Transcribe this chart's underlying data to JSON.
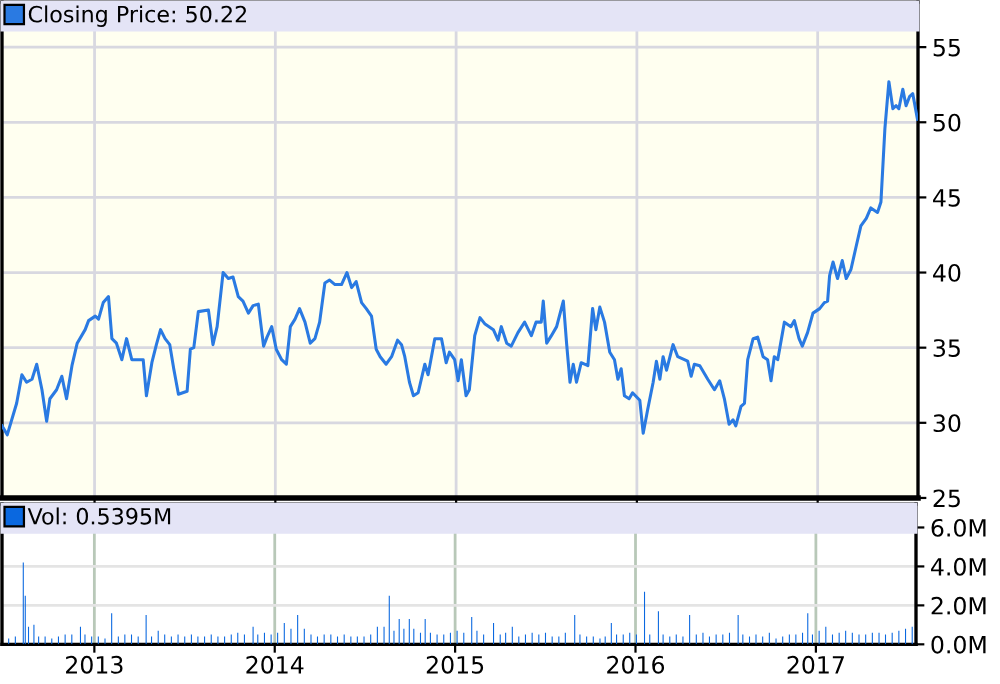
{
  "chart_data": [
    {
      "type": "line",
      "xlim": [
        2012.488,
        2017.555
      ],
      "ylim": [
        25,
        58
      ],
      "yticks": [
        25,
        30,
        35,
        40,
        45,
        50,
        55
      ],
      "xticks": [
        {
          "value": 2013,
          "label": null
        },
        {
          "value": 2014,
          "label": null
        },
        {
          "value": 2015,
          "label": null
        },
        {
          "value": 2016,
          "label": null
        },
        {
          "value": 2017,
          "label": null
        }
      ],
      "tick_labels": "y",
      "grid": true,
      "legend": "top left",
      "marker": "none",
      "line_style": "solid",
      "series": [
        {
          "name": "Closing Price: 50.22",
          "color": "#2a7ae2",
          "x": [
            2012.488,
            2012.517,
            2012.569,
            2012.598,
            2012.624,
            2012.654,
            2012.68,
            2012.709,
            2012.735,
            2012.753,
            2012.79,
            2012.819,
            2012.845,
            2012.875,
            2012.904,
            2012.948,
            2012.967,
            2013.004,
            2013.022,
            2013.048,
            2013.077,
            2013.096,
            2013.121,
            2013.151,
            2013.177,
            2013.206,
            2013.269,
            2013.287,
            2013.317,
            2013.342,
            2013.365,
            2013.39,
            2013.416,
            2013.438,
            2013.464,
            2013.512,
            2013.53,
            2013.549,
            2013.574,
            2013.63,
            2013.655,
            2013.678,
            2013.711,
            2013.74,
            2013.766,
            2013.795,
            2013.821,
            2013.851,
            2013.877,
            2013.906,
            2013.935,
            2013.954,
            2013.98,
            2014.005,
            2014.035,
            2014.061,
            2014.083,
            2014.109,
            2014.134,
            2014.164,
            2014.193,
            2014.219,
            2014.245,
            2014.274,
            2014.3,
            2014.33,
            2014.366,
            2014.396,
            2014.422,
            2014.447,
            2014.477,
            2014.503,
            2014.532,
            2014.558,
            2014.58,
            2014.613,
            2014.643,
            2014.676,
            2014.698,
            2014.716,
            2014.742,
            2014.764,
            2014.79,
            2014.827,
            2014.845,
            2014.882,
            2014.919,
            2014.945,
            2014.963,
            2014.992,
            2015.011,
            2015.029,
            2015.055,
            2015.073,
            2015.103,
            2015.132,
            2015.158,
            2015.206,
            2015.232,
            2015.25,
            2015.28,
            2015.305,
            2015.342,
            2015.379,
            2015.416,
            2015.442,
            2015.471,
            2015.482,
            2015.501,
            2015.527,
            2015.556,
            2015.593,
            2015.611,
            2015.63,
            2015.648,
            2015.666,
            2015.692,
            2015.729,
            2015.755,
            2015.773,
            2015.795,
            2015.821,
            2015.85,
            2015.876,
            2015.895,
            2015.913,
            2015.931,
            2015.957,
            2015.976,
            2016.016,
            2016.035,
            2016.06,
            2016.09,
            2016.108,
            2016.127,
            2016.145,
            2016.164,
            2016.2,
            2016.226,
            2016.281,
            2016.3,
            2016.318,
            2016.348,
            2016.392,
            2016.429,
            2016.458,
            2016.484,
            2016.51,
            2016.532,
            2016.547,
            2016.576,
            2016.595,
            2016.613,
            2016.643,
            2016.668,
            2016.698,
            2016.723,
            2016.742,
            2016.76,
            2016.779,
            2016.816,
            2016.852,
            2016.871,
            2016.897,
            2016.915,
            2016.944,
            2016.974,
            2017.011,
            2017.037,
            2017.055,
            2017.066,
            2017.085,
            2017.11,
            2017.136,
            2017.158,
            2017.184,
            2017.214,
            2017.239,
            2017.269,
            2017.294,
            2017.331,
            2017.35,
            2017.372,
            2017.394,
            2017.416,
            2017.434,
            2017.449,
            2017.471,
            2017.489,
            2017.508,
            2017.526,
            2017.552
          ],
          "values": [
            29.8,
            29.2,
            31.3,
            33.2,
            32.7,
            32.9,
            33.9,
            32.2,
            30.1,
            31.6,
            32.2,
            33.1,
            31.6,
            33.8,
            35.3,
            36.2,
            36.8,
            37.1,
            36.9,
            38.0,
            38.4,
            35.6,
            35.3,
            34.2,
            35.6,
            34.2,
            34.2,
            31.8,
            34.0,
            35.2,
            36.2,
            35.6,
            35.2,
            33.6,
            31.9,
            32.1,
            34.9,
            35.0,
            37.4,
            37.5,
            35.2,
            36.4,
            40.0,
            39.6,
            39.7,
            38.4,
            38.1,
            37.3,
            37.8,
            37.9,
            35.1,
            35.7,
            36.4,
            34.9,
            34.2,
            33.9,
            36.4,
            36.9,
            37.6,
            36.7,
            35.3,
            35.6,
            36.7,
            39.3,
            39.5,
            39.2,
            39.2,
            40.0,
            39.0,
            39.4,
            38.0,
            37.6,
            37.1,
            34.9,
            34.4,
            33.9,
            34.4,
            35.5,
            35.2,
            34.4,
            32.7,
            31.8,
            32.0,
            33.9,
            33.2,
            35.6,
            35.6,
            34.0,
            34.7,
            34.2,
            32.8,
            34.2,
            31.8,
            32.2,
            35.8,
            37.0,
            36.6,
            36.2,
            35.5,
            36.4,
            35.3,
            35.1,
            36.0,
            36.7,
            35.8,
            36.7,
            36.7,
            38.1,
            35.3,
            35.8,
            36.4,
            38.1,
            35.3,
            32.7,
            33.9,
            32.7,
            34.0,
            33.8,
            37.6,
            36.2,
            37.7,
            36.7,
            34.7,
            34.2,
            32.9,
            33.6,
            31.8,
            31.6,
            32.0,
            31.5,
            29.3,
            30.9,
            32.7,
            34.1,
            32.9,
            34.4,
            33.5,
            35.2,
            34.4,
            34.1,
            33.1,
            33.9,
            33.8,
            32.9,
            32.2,
            32.8,
            31.6,
            29.9,
            30.2,
            29.8,
            31.1,
            31.3,
            34.2,
            35.6,
            35.7,
            34.4,
            34.2,
            32.8,
            34.4,
            34.2,
            36.7,
            36.4,
            36.8,
            35.6,
            35.1,
            36.0,
            37.3,
            37.6,
            38.0,
            38.1,
            39.8,
            40.7,
            39.6,
            40.8,
            39.6,
            40.2,
            41.8,
            43.1,
            43.6,
            44.3,
            44.0,
            44.7,
            49.6,
            52.7,
            50.9,
            51.1,
            50.9,
            52.2,
            51.1,
            51.7,
            51.9,
            50.2
          ]
        }
      ]
    },
    {
      "type": "bar",
      "xlim": [
        2012.488,
        2017.555
      ],
      "ylim": [
        0,
        7.2
      ],
      "yticks": [
        {
          "value": 0,
          "label": "0.0M"
        },
        {
          "value": 2,
          "label": "2.0M"
        },
        {
          "value": 4,
          "label": "4.0M"
        },
        {
          "value": 6,
          "label": "6.0M"
        }
      ],
      "xticks": [
        2013,
        2014,
        2015,
        2016,
        2017
      ],
      "grid": true,
      "legend": "top left",
      "series": [
        {
          "name": "Vol: 0.5395M",
          "color": "#0a68e0",
          "x": [
            2012.525,
            2012.562,
            2012.606,
            2012.617,
            2012.635,
            2012.665,
            2012.691,
            2012.727,
            2012.764,
            2012.801,
            2012.838,
            2012.875,
            2012.923,
            2012.948,
            2012.985,
            2013.022,
            2013.059,
            2013.096,
            2013.133,
            2013.169,
            2013.206,
            2013.243,
            2013.287,
            2013.317,
            2013.354,
            2013.39,
            2013.427,
            2013.464,
            2013.501,
            2013.538,
            2013.574,
            2013.611,
            2013.648,
            2013.685,
            2013.722,
            2013.759,
            2013.795,
            2013.832,
            2013.88,
            2013.906,
            2013.943,
            2013.98,
            2014.016,
            2014.053,
            2014.09,
            2014.127,
            2014.164,
            2014.201,
            2014.237,
            2014.274,
            2014.311,
            2014.348,
            2014.385,
            2014.422,
            2014.458,
            2014.495,
            2014.532,
            2014.569,
            2014.606,
            2014.635,
            2014.661,
            2014.69,
            2014.716,
            2014.746,
            2014.771,
            2014.808,
            2014.834,
            2014.863,
            2014.9,
            2014.937,
            2014.974,
            2015.011,
            2015.048,
            2015.092,
            2015.121,
            2015.158,
            2015.213,
            2015.25,
            2015.28,
            2015.317,
            2015.353,
            2015.39,
            2015.427,
            2015.464,
            2015.501,
            2015.538,
            2015.575,
            2015.611,
            2015.663,
            2015.692,
            2015.729,
            2015.766,
            2015.803,
            2015.832,
            2015.866,
            2015.895,
            2015.932,
            2015.968,
            2016.005,
            2016.05,
            2016.079,
            2016.127,
            2016.153,
            2016.19,
            2016.226,
            2016.263,
            2016.3,
            2016.337,
            2016.374,
            2016.41,
            2016.447,
            2016.484,
            2016.521,
            2016.569,
            2016.595,
            2016.632,
            2016.668,
            2016.705,
            2016.742,
            2016.779,
            2016.816,
            2016.853,
            2016.889,
            2016.926,
            2016.955,
            2016.981,
            2017.018,
            2017.055,
            2017.092,
            2017.129,
            2017.165,
            2017.202,
            2017.239,
            2017.276,
            2017.313,
            2017.35,
            2017.386,
            2017.423,
            2017.46,
            2017.497,
            2017.534
          ],
          "values": [
            0.3,
            0.4,
            4.2,
            2.5,
            0.9,
            1.0,
            0.4,
            0.4,
            0.3,
            0.4,
            0.5,
            0.5,
            0.9,
            0.5,
            0.4,
            0.4,
            0.3,
            1.6,
            0.4,
            0.5,
            0.5,
            0.4,
            1.5,
            0.4,
            0.7,
            0.5,
            0.4,
            0.5,
            0.4,
            0.5,
            0.4,
            0.4,
            0.5,
            0.4,
            0.4,
            0.5,
            0.6,
            0.5,
            0.9,
            0.5,
            0.6,
            0.5,
            0.6,
            1.1,
            0.8,
            1.5,
            0.8,
            0.5,
            0.4,
            0.5,
            0.5,
            0.4,
            0.5,
            0.4,
            0.4,
            0.4,
            0.5,
            0.9,
            0.9,
            2.5,
            0.7,
            1.3,
            0.8,
            1.3,
            0.8,
            0.6,
            1.3,
            0.6,
            0.5,
            0.5,
            0.6,
            0.7,
            0.6,
            1.4,
            0.7,
            0.5,
            1.1,
            0.5,
            0.6,
            0.9,
            0.4,
            0.5,
            0.6,
            0.5,
            0.6,
            0.4,
            0.4,
            0.6,
            1.5,
            0.5,
            0.4,
            0.4,
            0.3,
            0.4,
            1.1,
            0.5,
            0.5,
            0.6,
            0.5,
            2.7,
            0.5,
            1.7,
            0.5,
            0.4,
            0.5,
            0.4,
            1.5,
            0.5,
            0.6,
            0.4,
            0.5,
            0.5,
            0.6,
            1.5,
            0.5,
            0.4,
            0.5,
            0.4,
            0.6,
            0.3,
            0.4,
            0.5,
            0.5,
            0.6,
            1.6,
            0.5,
            0.7,
            0.9,
            0.5,
            0.6,
            0.7,
            0.6,
            0.5,
            0.5,
            0.6,
            0.6,
            0.5,
            0.6,
            0.7,
            0.8,
            0.9
          ]
        }
      ]
    }
  ]
}
